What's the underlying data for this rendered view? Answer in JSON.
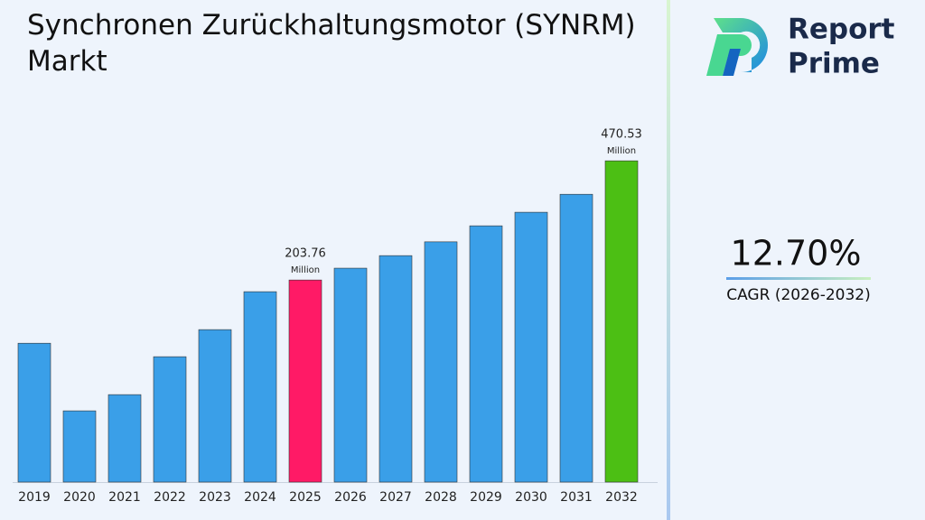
{
  "chart_data": {
    "type": "bar",
    "title": "Synchronen Zurückhaltungsmotor (SYNRM) Markt",
    "categories": [
      "2019",
      "2020",
      "2021",
      "2022",
      "2023",
      "2024",
      "2025",
      "2026",
      "2027",
      "2028",
      "2029",
      "2030",
      "2031",
      "2032"
    ],
    "values": [
      130.7,
      81.3,
      91.1,
      118.9,
      143.8,
      187.7,
      203.76,
      221.4,
      241.8,
      266.4,
      298.1,
      327.9,
      372.0,
      470.53
    ],
    "value_labels": [
      null,
      null,
      null,
      null,
      null,
      null,
      "203.76",
      null,
      null,
      null,
      null,
      null,
      null,
      "470.53"
    ],
    "value_unit": "Million",
    "colors": [
      "#3a9fe8",
      "#3a9fe8",
      "#3a9fe8",
      "#3a9fe8",
      "#3a9fe8",
      "#3a9fe8",
      "#ff1a66",
      "#3a9fe8",
      "#3a9fe8",
      "#3a9fe8",
      "#3a9fe8",
      "#3a9fe8",
      "#3a9fe8",
      "#4cbf14"
    ],
    "ylim": [
      49.3,
      480
    ],
    "log_scale": true
  },
  "cagr": {
    "value": "12.70%",
    "label": "CAGR (2026-2032)"
  },
  "logo": {
    "line1": "Report",
    "line2": "Prime"
  }
}
